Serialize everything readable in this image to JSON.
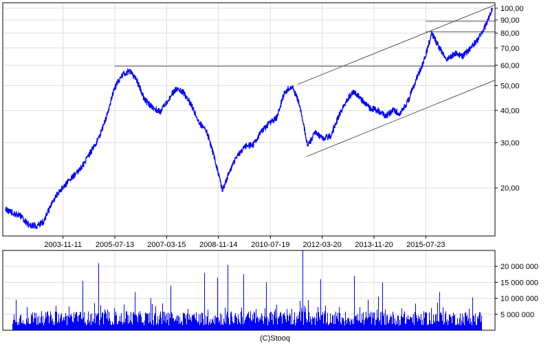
{
  "footer": "(C)Stooq",
  "colors": {
    "series": "#0000ff",
    "grid": "#dcdcdc",
    "frame": "#000000",
    "lines": "#555555",
    "background": "#ffffff"
  },
  "chart_data": [
    {
      "type": "line",
      "scale": "log",
      "grid": true,
      "ylim": [
        13.0,
        105.0
      ],
      "y_ticks": [
        {
          "v": 20,
          "label": "20,00"
        },
        {
          "v": 30,
          "label": "30,00"
        },
        {
          "v": 40,
          "label": "40,00"
        },
        {
          "v": 50,
          "label": "50,00"
        },
        {
          "v": 60,
          "label": "60,00"
        },
        {
          "v": 70,
          "label": "70,00"
        },
        {
          "v": 80,
          "label": "80,00"
        },
        {
          "v": 90,
          "label": "90,00"
        },
        {
          "v": 100,
          "label": "100,00"
        }
      ],
      "x_ticks": [
        "2003-11-11",
        "2005-07-13",
        "2007-03-15",
        "2008-11-14",
        "2010-07-19",
        "2012-03-20",
        "2013-11-20",
        "2015-07-23"
      ],
      "xlim": [
        "2001-12-01",
        "2017-10-15"
      ],
      "series": [
        {
          "x": [
            "2002-01-01",
            "2002-04-01",
            "2002-07-01",
            "2002-10-01",
            "2003-01-01",
            "2003-04-01",
            "2003-07-01",
            "2003-10-01",
            "2004-01-01",
            "2004-04-01",
            "2004-07-01",
            "2004-10-01",
            "2005-01-01",
            "2005-04-01",
            "2005-07-01",
            "2005-10-01",
            "2006-01-01",
            "2006-04-01",
            "2006-07-01",
            "2006-10-01",
            "2007-01-01",
            "2007-04-01",
            "2007-07-01",
            "2007-10-01",
            "2008-01-01",
            "2008-04-01",
            "2008-07-01",
            "2008-10-01",
            "2009-01-01",
            "2009-04-01",
            "2009-07-01",
            "2009-10-01",
            "2010-01-01",
            "2010-04-01",
            "2010-07-01",
            "2010-10-01",
            "2011-01-01",
            "2011-04-01",
            "2011-07-01",
            "2011-10-01",
            "2012-01-01",
            "2012-04-01",
            "2012-07-01",
            "2012-10-01",
            "2013-01-01",
            "2013-04-01",
            "2013-07-01",
            "2013-10-01",
            "2014-01-01",
            "2014-04-01",
            "2014-07-01",
            "2014-10-01",
            "2015-01-01",
            "2015-04-01",
            "2015-07-01",
            "2015-10-01",
            "2016-01-01",
            "2016-04-01",
            "2016-07-01",
            "2016-10-01",
            "2017-01-01",
            "2017-04-01",
            "2017-07-01",
            "2017-09-15"
          ],
          "y": [
            16.5,
            16.0,
            15.5,
            14.4,
            14.2,
            14.8,
            17.5,
            19.5,
            21.0,
            22.5,
            24.5,
            27.5,
            31.0,
            37.5,
            48.0,
            55.0,
            57.0,
            52.0,
            44.0,
            41.0,
            39.5,
            44.0,
            48.5,
            47.0,
            42.0,
            36.0,
            33.0,
            26.0,
            19.5,
            23.5,
            27.0,
            29.0,
            29.5,
            33.0,
            35.5,
            37.5,
            47.0,
            50.0,
            42.0,
            29.0,
            33.0,
            31.0,
            32.0,
            38.0,
            44.0,
            47.5,
            44.0,
            41.0,
            40.0,
            38.0,
            40.0,
            39.0,
            44.0,
            53.0,
            62.0,
            80.0,
            70.0,
            63.0,
            67.0,
            65.0,
            70.0,
            76.0,
            86.0,
            100.0
          ]
        }
      ],
      "trend_lines": [
        {
          "x": [
            "2011-06-01",
            "2017-10-15"
          ],
          "y": [
            50.5,
            103.0
          ]
        },
        {
          "x": [
            "2011-09-20",
            "2017-10-15"
          ],
          "y": [
            26.5,
            52.5
          ]
        }
      ],
      "levels": [
        {
          "x_from": "2005-07-13",
          "y": 59.5
        },
        {
          "x_from": "2015-07-23",
          "y": 89.0
        },
        {
          "x_from": "2015-07-23",
          "y": 81.0
        }
      ]
    },
    {
      "type": "bar",
      "grid": true,
      "ylim": [
        0,
        25000000
      ],
      "y_ticks": [
        {
          "v": 5000000,
          "label": "5 000 000"
        },
        {
          "v": 10000000,
          "label": "10 000 000"
        },
        {
          "v": 15000000,
          "label": "15 000 000"
        },
        {
          "v": 20000000,
          "label": "20 000 000"
        }
      ],
      "spikes": [
        {
          "x": "2002-05-01",
          "v": 9500000
        },
        {
          "x": "2004-07-01",
          "v": 15500000
        },
        {
          "x": "2005-01-01",
          "v": 21000000
        },
        {
          "x": "2006-03-01",
          "v": 12000000
        },
        {
          "x": "2007-05-01",
          "v": 14000000
        },
        {
          "x": "2008-06-01",
          "v": 18000000
        },
        {
          "x": "2008-11-01",
          "v": 16500000
        },
        {
          "x": "2009-03-01",
          "v": 20500000
        },
        {
          "x": "2009-09-01",
          "v": 17500000
        },
        {
          "x": "2010-06-01",
          "v": 15000000
        },
        {
          "x": "2011-08-01",
          "v": 25000000
        },
        {
          "x": "2012-03-01",
          "v": 16000000
        },
        {
          "x": "2013-04-01",
          "v": 17000000
        },
        {
          "x": "2014-03-01",
          "v": 15000000
        },
        {
          "x": "2016-01-01",
          "v": 12000000
        }
      ]
    }
  ]
}
